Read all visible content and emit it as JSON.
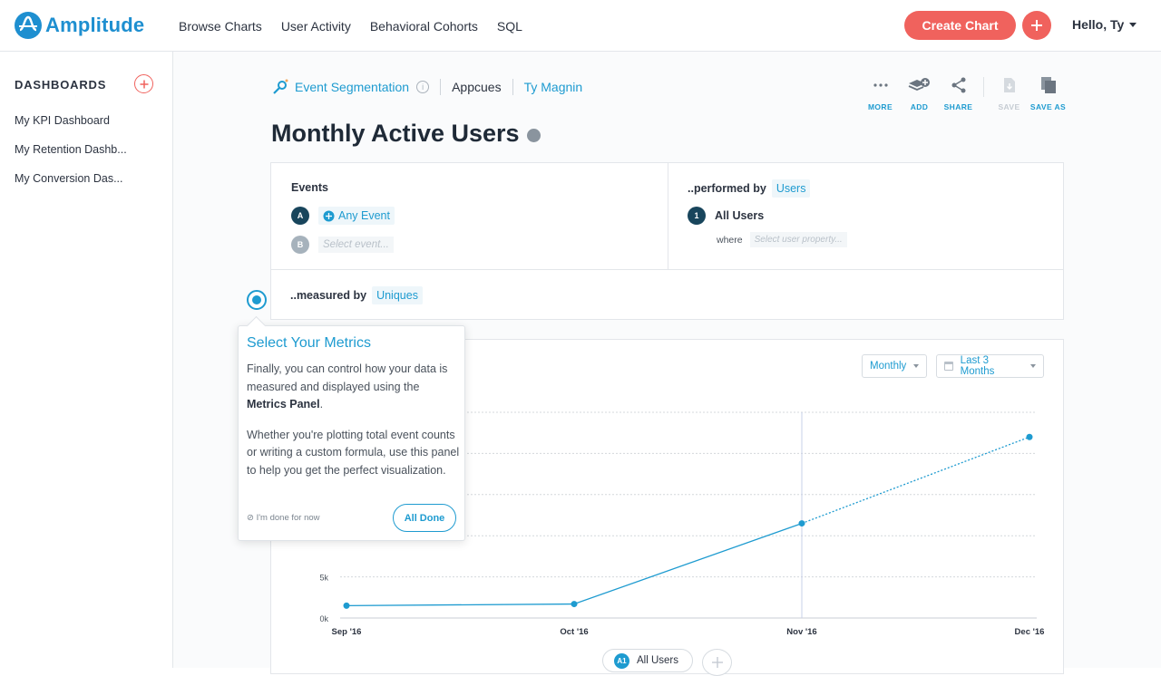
{
  "app": {
    "logo_text": "Amplitude",
    "brand_color": "#1e8fd0",
    "accent_color": "#f0625d"
  },
  "topnav": {
    "items": [
      "Browse Charts",
      "User Activity",
      "Behavioral Cohorts",
      "SQL"
    ],
    "create_label": "Create Chart",
    "greeting": "Hello, Ty"
  },
  "sidebar": {
    "heading": "DASHBOARDS",
    "items": [
      "My KPI Dashboard",
      "My Retention Dashb...",
      "My Conversion Das..."
    ]
  },
  "breadcrumb": {
    "chart_type": "Event Segmentation",
    "project": "Appcues",
    "owner": "Ty Magnin"
  },
  "actions": {
    "more": "MORE",
    "add": "ADD",
    "share": "SHARE",
    "save": "SAVE",
    "save_as": "SAVE AS"
  },
  "title": "Monthly Active Users",
  "query": {
    "events_label": "Events",
    "event_a_badge": "A",
    "event_a": "Any Event",
    "event_b_badge": "B",
    "event_b_placeholder": "Select event...",
    "performed_by_label": "..performed by",
    "performed_by_value": "Users",
    "segment_badge": "1",
    "segment_name": "All Users",
    "where_label": "where",
    "where_placeholder": "Select user property...",
    "measured_by_label": "..measured by",
    "measured_by_value": "Uniques"
  },
  "controls": {
    "interval": "Monthly",
    "range": "Last 3 Months"
  },
  "tooltip": {
    "title": "Select Your Metrics",
    "p1_before": "Finally, you can control how your data is measured and displayed using the ",
    "p1_bold": "Metrics Panel",
    "p1_after": ".",
    "p2": "Whether you're plotting total event counts or writing a custom formula, use this panel to help you get the perfect visualization.",
    "skip": "⊘ I'm done for now",
    "done": "All Done"
  },
  "legend": {
    "badge": "A1",
    "label": "All Users"
  },
  "chart_data": {
    "type": "line",
    "categories": [
      "Sep '16",
      "Oct '16",
      "Nov '16",
      "Dec '16"
    ],
    "series": [
      {
        "name": "All Users",
        "values": [
          1500,
          1700,
          11500,
          22000
        ]
      }
    ],
    "y_ticks": [
      "0k",
      "5k"
    ],
    "ylim": [
      0,
      25000
    ],
    "last_segment_style": "dotted",
    "series_color": "#1e9bd0",
    "grid": true,
    "highlight_category": "Nov '16"
  }
}
